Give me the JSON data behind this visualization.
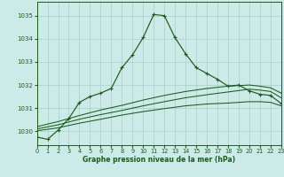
{
  "title": "Graphe pression niveau de la mer (hPa)",
  "bg_color": "#cceae7",
  "grid_color": "#aad4d0",
  "line_color": "#1a5c1a",
  "xlim": [
    0,
    23
  ],
  "ylim": [
    1029.4,
    1035.6
  ],
  "yticks": [
    1030,
    1031,
    1032,
    1033,
    1034,
    1035
  ],
  "xticks": [
    0,
    1,
    2,
    3,
    4,
    5,
    6,
    7,
    8,
    9,
    10,
    11,
    12,
    13,
    14,
    15,
    16,
    17,
    18,
    19,
    20,
    21,
    22,
    23
  ],
  "main_series": [
    [
      0,
      1029.75
    ],
    [
      1,
      1029.65
    ],
    [
      2,
      1030.05
    ],
    [
      3,
      1030.55
    ],
    [
      4,
      1031.25
    ],
    [
      5,
      1031.5
    ],
    [
      6,
      1031.65
    ],
    [
      7,
      1031.85
    ],
    [
      8,
      1032.75
    ],
    [
      9,
      1033.3
    ],
    [
      10,
      1034.05
    ],
    [
      11,
      1035.05
    ],
    [
      12,
      1035.0
    ],
    [
      13,
      1034.05
    ],
    [
      14,
      1033.35
    ],
    [
      15,
      1032.75
    ],
    [
      16,
      1032.5
    ],
    [
      17,
      1032.25
    ],
    [
      18,
      1031.95
    ],
    [
      19,
      1032.0
    ],
    [
      20,
      1031.75
    ],
    [
      21,
      1031.6
    ],
    [
      22,
      1031.55
    ],
    [
      23,
      1031.2
    ]
  ],
  "smooth_series1": [
    [
      0,
      1030.02
    ],
    [
      2,
      1030.15
    ],
    [
      4,
      1030.35
    ],
    [
      6,
      1030.52
    ],
    [
      8,
      1030.7
    ],
    [
      10,
      1030.85
    ],
    [
      12,
      1030.98
    ],
    [
      14,
      1031.1
    ],
    [
      16,
      1031.18
    ],
    [
      18,
      1031.22
    ],
    [
      20,
      1031.28
    ],
    [
      21,
      1031.28
    ],
    [
      22,
      1031.25
    ],
    [
      23,
      1031.1
    ]
  ],
  "smooth_series2": [
    [
      0,
      1030.1
    ],
    [
      2,
      1030.28
    ],
    [
      4,
      1030.52
    ],
    [
      6,
      1030.72
    ],
    [
      8,
      1030.9
    ],
    [
      10,
      1031.1
    ],
    [
      12,
      1031.28
    ],
    [
      14,
      1031.45
    ],
    [
      16,
      1031.58
    ],
    [
      18,
      1031.7
    ],
    [
      20,
      1031.82
    ],
    [
      21,
      1031.78
    ],
    [
      22,
      1031.72
    ],
    [
      23,
      1031.45
    ]
  ],
  "smooth_series3": [
    [
      0,
      1030.2
    ],
    [
      2,
      1030.42
    ],
    [
      4,
      1030.68
    ],
    [
      6,
      1030.92
    ],
    [
      8,
      1031.12
    ],
    [
      10,
      1031.35
    ],
    [
      12,
      1031.55
    ],
    [
      14,
      1031.72
    ],
    [
      16,
      1031.85
    ],
    [
      18,
      1031.95
    ],
    [
      20,
      1032.0
    ],
    [
      21,
      1031.95
    ],
    [
      22,
      1031.88
    ],
    [
      23,
      1031.65
    ]
  ]
}
